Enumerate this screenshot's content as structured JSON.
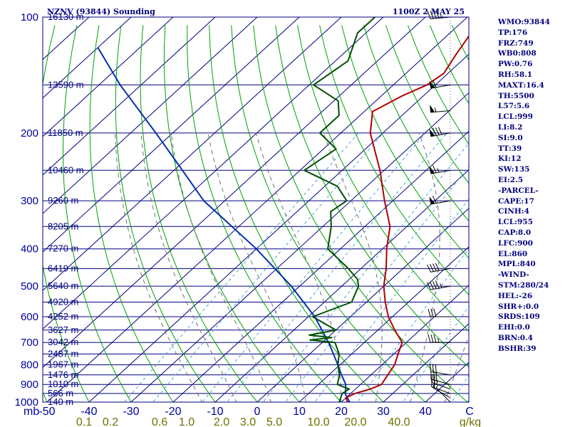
{
  "title_left": "NZNV (93844) Sounding",
  "title_right": "1100Z  2 MAY 25",
  "params": [
    "WMO:93844",
    "TP:176",
    "FRZ:749",
    "WB0:808",
    "PW:0.76",
    "RH:58.1",
    "MAXT:16.4",
    "TH:5500",
    "L57:5.6",
    "LCL:999",
    "LI:8.2",
    "SI:9.0",
    "TT:39",
    "KI:12",
    "SW:135",
    "EI:2.5",
    "-PARCEL-",
    "CAPE:17",
    "CINH:4",
    "LCL:955",
    "CAP:8.0",
    "LFC:900",
    "EL:860",
    "MPL:840",
    "-WIND-",
    "STM:280/24",
    "HEL:-26",
    "SHR+:0.0",
    "SRDS:109",
    "EHI:0.0",
    "BRN:0.4",
    "BSHR:39"
  ],
  "colors": {
    "isobar": "#000080",
    "isotherm": "#000080",
    "dry_adiabat": "#00a000",
    "mixing_ratio": "#4aa3d8",
    "moist_adiabat": "#707070",
    "temperature": "#b00000",
    "dewpoint": "#005000",
    "parcel": "#0030b0",
    "wind_barb": "#000000"
  },
  "chart_data": {
    "type": "skew-t",
    "pressure_axis_label": "mb",
    "pressure_levels": [
      100,
      200,
      300,
      400,
      500,
      600,
      700,
      800,
      900,
      1000
    ],
    "pressure_tick_labels": [
      "100",
      "200",
      "300",
      "400",
      "500",
      "600",
      "700",
      "800",
      "900",
      "1000"
    ],
    "pressure_range": [
      100,
      1000
    ],
    "height_labels": [
      {
        "p": 100,
        "label": "16130 m"
      },
      {
        "p": 150,
        "label": "13590 m"
      },
      {
        "p": 200,
        "label": "11850 m"
      },
      {
        "p": 250,
        "label": "10460 m"
      },
      {
        "p": 300,
        "label": "9260 m"
      },
      {
        "p": 350,
        "label": "8205 m"
      },
      {
        "p": 400,
        "label": "7270 m"
      },
      {
        "p": 450,
        "label": "6419 m"
      },
      {
        "p": 500,
        "label": "5640 m"
      },
      {
        "p": 550,
        "label": "4920 m"
      },
      {
        "p": 600,
        "label": "4252 m"
      },
      {
        "p": 650,
        "label": "3627 m"
      },
      {
        "p": 700,
        "label": "3042 m"
      },
      {
        "p": 750,
        "label": "2487 m"
      },
      {
        "p": 800,
        "label": "1967 m"
      },
      {
        "p": 850,
        "label": "1476 m"
      },
      {
        "p": 900,
        "label": "1010 m"
      },
      {
        "p": 950,
        "label": "566 m"
      },
      {
        "p": 1000,
        "label": "140 m"
      }
    ],
    "temperature_ticks": [
      -50,
      -40,
      -30,
      -20,
      -10,
      0,
      10,
      20,
      30,
      40
    ],
    "temperature_tick_labels": [
      "-50",
      "-40",
      "-30",
      "-20",
      "-10",
      "0",
      "10",
      "20",
      "30",
      "40"
    ],
    "temperature_axis_label": "C",
    "mixing_ratio_ticks": [
      0.1,
      0.2,
      0.6,
      1.0,
      2.0,
      3.0,
      5.0,
      10.0,
      20.0,
      40.0
    ],
    "mixing_ratio_tick_labels": [
      "0.1",
      "0.2",
      "0.6",
      "1.0",
      "2.0",
      "3.0",
      "5.0",
      "10.0",
      "20.0",
      "40.0"
    ],
    "mixing_ratio_label": "g/kg",
    "temperature_profile": [
      {
        "p": 1000,
        "t": 11.5
      },
      {
        "p": 975,
        "t": 10.0
      },
      {
        "p": 950,
        "t": 11.0
      },
      {
        "p": 925,
        "t": 13.5
      },
      {
        "p": 900,
        "t": 15.0
      },
      {
        "p": 850,
        "t": 14.0
      },
      {
        "p": 800,
        "t": 13.0
      },
      {
        "p": 750,
        "t": 11.0
      },
      {
        "p": 700,
        "t": 9.0
      },
      {
        "p": 650,
        "t": 4.0
      },
      {
        "p": 600,
        "t": -1.0
      },
      {
        "p": 550,
        "t": -5.5
      },
      {
        "p": 500,
        "t": -10.0
      },
      {
        "p": 450,
        "t": -14.0
      },
      {
        "p": 400,
        "t": -19.0
      },
      {
        "p": 350,
        "t": -24.0
      },
      {
        "p": 300,
        "t": -32.0
      },
      {
        "p": 250,
        "t": -41.0
      },
      {
        "p": 200,
        "t": -53.0
      },
      {
        "p": 176,
        "t": -58.0
      },
      {
        "p": 160,
        "t": -55.0
      },
      {
        "p": 150,
        "t": -52.0
      },
      {
        "p": 140,
        "t": -51.0
      },
      {
        "p": 125,
        "t": -53.0
      },
      {
        "p": 110,
        "t": -55.0
      },
      {
        "p": 100,
        "t": -51.0
      }
    ],
    "dewpoint_profile": [
      {
        "p": 1000,
        "t": 9.5
      },
      {
        "p": 950,
        "t": 8.0
      },
      {
        "p": 925,
        "t": 8.5
      },
      {
        "p": 900,
        "t": 4.5
      },
      {
        "p": 850,
        "t": 2.5
      },
      {
        "p": 800,
        "t": -0.5
      },
      {
        "p": 750,
        "t": -3.0
      },
      {
        "p": 700,
        "t": -7.0
      },
      {
        "p": 690,
        "t": -13.5
      },
      {
        "p": 680,
        "t": -9.0
      },
      {
        "p": 670,
        "t": -15.0
      },
      {
        "p": 650,
        "t": -10.0
      },
      {
        "p": 600,
        "t": -19.0
      },
      {
        "p": 550,
        "t": -13.5
      },
      {
        "p": 500,
        "t": -16.0
      },
      {
        "p": 480,
        "t": -18.0
      },
      {
        "p": 450,
        "t": -23.0
      },
      {
        "p": 400,
        "t": -33.0
      },
      {
        "p": 350,
        "t": -38.0
      },
      {
        "p": 320,
        "t": -42.0
      },
      {
        "p": 300,
        "t": -41.0
      },
      {
        "p": 275,
        "t": -47.0
      },
      {
        "p": 250,
        "t": -59.0
      },
      {
        "p": 220,
        "t": -57.0
      },
      {
        "p": 200,
        "t": -65.0
      },
      {
        "p": 180,
        "t": -65.0
      },
      {
        "p": 165,
        "t": -69.0
      },
      {
        "p": 150,
        "t": -79.0
      },
      {
        "p": 130,
        "t": -77.0
      },
      {
        "p": 110,
        "t": -82.0
      },
      {
        "p": 100,
        "t": -82.0
      }
    ],
    "parcel_profile": [
      {
        "p": 1000,
        "t": 12.0
      },
      {
        "p": 955,
        "t": 9.0
      },
      {
        "p": 900,
        "t": 6.5
      },
      {
        "p": 850,
        "t": 3.0
      },
      {
        "p": 800,
        "t": -0.5
      },
      {
        "p": 700,
        "t": -8.5
      },
      {
        "p": 600,
        "t": -18.5
      },
      {
        "p": 500,
        "t": -32.0
      },
      {
        "p": 400,
        "t": -50.0
      },
      {
        "p": 300,
        "t": -75.0
      },
      {
        "p": 250,
        "t": -88.0
      },
      {
        "p": 200,
        "t": -104.0
      },
      {
        "p": 150,
        "t": -125.0
      },
      {
        "p": 120,
        "t": -140.0
      }
    ],
    "wind_barbs": [
      {
        "p": 1000,
        "dir": 315,
        "spd": 5
      },
      {
        "p": 975,
        "dir": 300,
        "spd": 10
      },
      {
        "p": 950,
        "dir": 290,
        "spd": 15
      },
      {
        "p": 925,
        "dir": 290,
        "spd": 25
      },
      {
        "p": 900,
        "dir": 285,
        "spd": 30
      },
      {
        "p": 850,
        "dir": 280,
        "spd": 30
      },
      {
        "p": 700,
        "dir": 270,
        "spd": 35
      },
      {
        "p": 600,
        "dir": 270,
        "spd": 30
      },
      {
        "p": 500,
        "dir": 260,
        "spd": 45
      },
      {
        "p": 450,
        "dir": 260,
        "spd": 40
      },
      {
        "p": 300,
        "dir": 260,
        "spd": 60
      },
      {
        "p": 250,
        "dir": 260,
        "spd": 65
      },
      {
        "p": 200,
        "dir": 260,
        "spd": 80
      },
      {
        "p": 175,
        "dir": 265,
        "spd": 55
      },
      {
        "p": 150,
        "dir": 260,
        "spd": 60
      },
      {
        "p": 100,
        "dir": 265,
        "spd": 45
      }
    ]
  }
}
